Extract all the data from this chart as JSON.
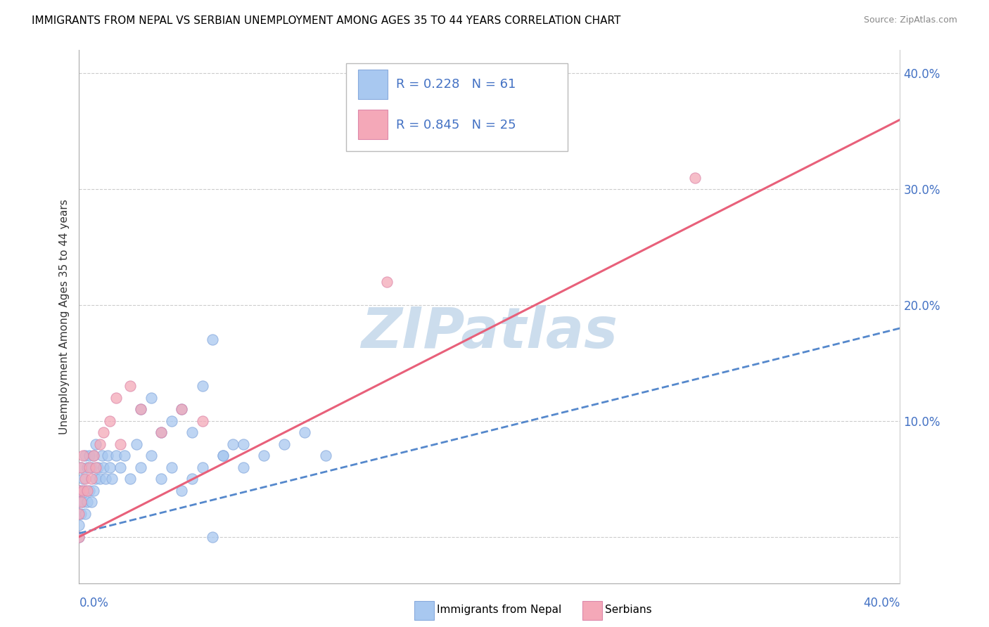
{
  "title": "IMMIGRANTS FROM NEPAL VS SERBIAN UNEMPLOYMENT AMONG AGES 35 TO 44 YEARS CORRELATION CHART",
  "source": "Source: ZipAtlas.com",
  "ylabel": "Unemployment Among Ages 35 to 44 years",
  "nepal_color": "#a8c8f0",
  "serbian_color": "#f4a8b8",
  "nepal_line_color": "#5588cc",
  "serbian_line_color": "#e8607a",
  "watermark_text": "ZIPatlas",
  "watermark_color": "#ccdded",
  "xlim": [
    0.0,
    0.4
  ],
  "ylim": [
    -0.04,
    0.42
  ],
  "nepal_r": 0.228,
  "nepal_n": 61,
  "serbian_r": 0.845,
  "serbian_n": 25,
  "nepal_x": [
    0.0,
    0.0,
    0.0,
    0.0,
    0.0,
    0.001,
    0.001,
    0.001,
    0.002,
    0.002,
    0.003,
    0.003,
    0.003,
    0.004,
    0.004,
    0.005,
    0.005,
    0.006,
    0.006,
    0.007,
    0.007,
    0.008,
    0.008,
    0.009,
    0.01,
    0.011,
    0.012,
    0.013,
    0.014,
    0.015,
    0.016,
    0.018,
    0.02,
    0.022,
    0.025,
    0.028,
    0.03,
    0.035,
    0.04,
    0.045,
    0.05,
    0.055,
    0.06,
    0.065,
    0.07,
    0.075,
    0.08,
    0.09,
    0.1,
    0.11,
    0.12,
    0.03,
    0.035,
    0.04,
    0.045,
    0.05,
    0.055,
    0.06,
    0.07,
    0.08,
    0.065
  ],
  "nepal_y": [
    0.0,
    0.01,
    0.02,
    0.03,
    0.04,
    0.02,
    0.04,
    0.06,
    0.03,
    0.05,
    0.02,
    0.04,
    0.07,
    0.03,
    0.06,
    0.04,
    0.07,
    0.03,
    0.06,
    0.04,
    0.07,
    0.05,
    0.08,
    0.06,
    0.05,
    0.07,
    0.06,
    0.05,
    0.07,
    0.06,
    0.05,
    0.07,
    0.06,
    0.07,
    0.05,
    0.08,
    0.06,
    0.07,
    0.05,
    0.06,
    0.04,
    0.05,
    0.06,
    0.17,
    0.07,
    0.08,
    0.06,
    0.07,
    0.08,
    0.09,
    0.07,
    0.11,
    0.12,
    0.09,
    0.1,
    0.11,
    0.09,
    0.13,
    0.07,
    0.08,
    0.0
  ],
  "serbian_x": [
    0.0,
    0.0,
    0.0,
    0.001,
    0.001,
    0.002,
    0.002,
    0.003,
    0.004,
    0.005,
    0.006,
    0.007,
    0.008,
    0.01,
    0.012,
    0.015,
    0.018,
    0.02,
    0.025,
    0.03,
    0.04,
    0.05,
    0.06,
    0.15,
    0.3
  ],
  "serbian_y": [
    0.0,
    0.02,
    0.04,
    0.03,
    0.06,
    0.04,
    0.07,
    0.05,
    0.04,
    0.06,
    0.05,
    0.07,
    0.06,
    0.08,
    0.09,
    0.1,
    0.12,
    0.08,
    0.13,
    0.11,
    0.09,
    0.11,
    0.1,
    0.22,
    0.31
  ],
  "nepal_line_x": [
    0.0,
    0.4
  ],
  "nepal_line_y": [
    0.003,
    0.18
  ],
  "serbian_line_x": [
    0.0,
    0.4
  ],
  "serbian_line_y": [
    0.0,
    0.36
  ]
}
